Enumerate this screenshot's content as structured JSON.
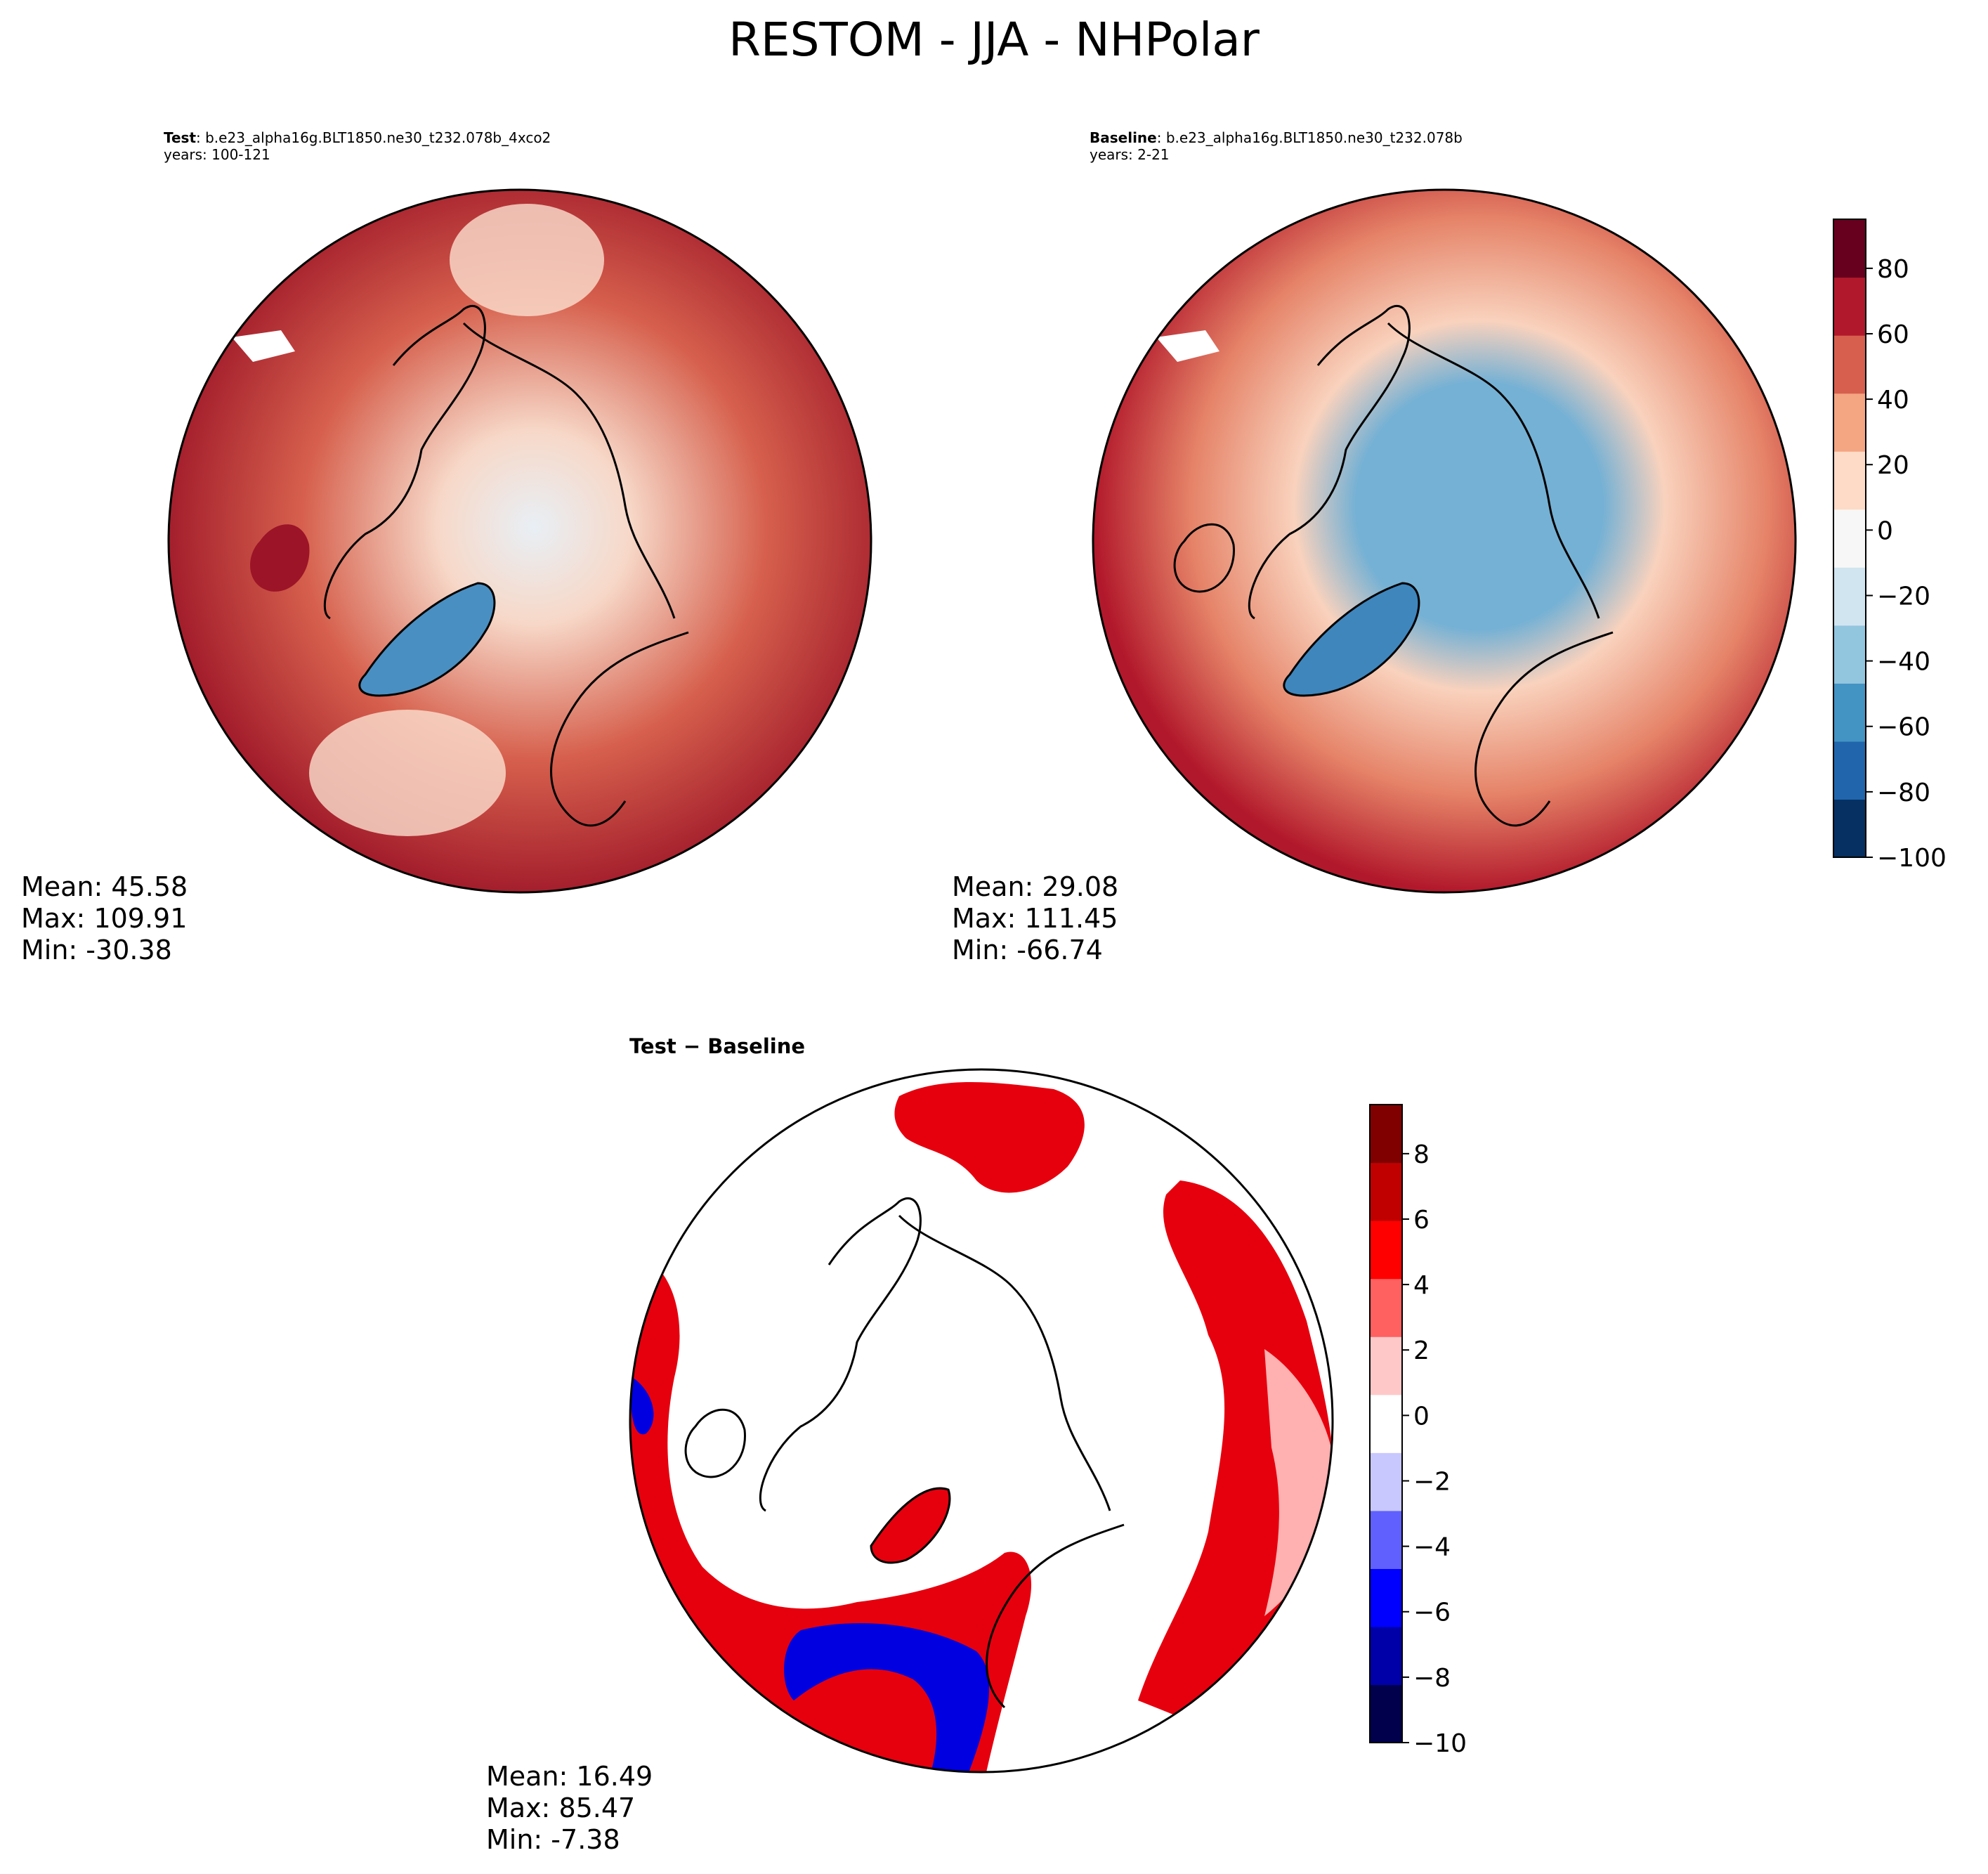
{
  "figure": {
    "title": "RESTOM - JJA - NHPolar"
  },
  "panels": {
    "test": {
      "label": "Test",
      "case": ": b.e23_alpha16g.BLT1850.ne30_t232.078b_4xco2",
      "years": "years: 100-121",
      "stats": {
        "mean": "Mean: 45.58",
        "max": "Max: 109.91",
        "min": "Min: -30.38"
      }
    },
    "baseline": {
      "label": "Baseline",
      "case": ": b.e23_alpha16g.BLT1850.ne30_t232.078b",
      "years": "years: 2-21",
      "stats": {
        "mean": "Mean: 29.08",
        "max": "Max: 111.45",
        "min": "Min: -66.74"
      }
    },
    "diff": {
      "title": "Test − Baseline",
      "stats": {
        "mean": "Mean: 16.49",
        "max": "Max: 85.47",
        "min": "Min: -7.38"
      }
    }
  },
  "chart_data": [
    {
      "type": "heatmap",
      "projection": "north polar stereographic",
      "title": "Test",
      "variable": "RESTOM",
      "season": "JJA",
      "region": "NHPolar",
      "mean": 45.58,
      "max": 109.91,
      "min": -30.38
    },
    {
      "type": "heatmap",
      "projection": "north polar stereographic",
      "title": "Baseline",
      "variable": "RESTOM",
      "season": "JJA",
      "region": "NHPolar",
      "mean": 29.08,
      "max": 111.45,
      "min": -66.74
    },
    {
      "type": "heatmap",
      "projection": "north polar stereographic",
      "title": "Test − Baseline",
      "variable": "RESTOM",
      "mean": 16.49,
      "max": 85.47,
      "min": -7.38
    }
  ],
  "colorbars": {
    "main": {
      "range": [
        -100,
        95
      ],
      "ticks": [
        -100,
        -80,
        -60,
        -40,
        -20,
        0,
        20,
        40,
        60,
        80
      ],
      "tick_labels": [
        "−100",
        "−80",
        "−60",
        "−40",
        "−20",
        "0",
        "20",
        "40",
        "60",
        "80"
      ],
      "colors": [
        "#053061",
        "#2166ac",
        "#4393c3",
        "#92c5de",
        "#d1e5f0",
        "#f7f7f7",
        "#fddbc7",
        "#f4a582",
        "#d6604d",
        "#b2182b",
        "#67001f"
      ]
    },
    "diff": {
      "range": [
        -10,
        9.5
      ],
      "ticks": [
        -10,
        -8,
        -6,
        -4,
        -2,
        0,
        2,
        4,
        6,
        8
      ],
      "tick_labels": [
        "−10",
        "−8",
        "−6",
        "−4",
        "−2",
        "0",
        "2",
        "4",
        "6",
        "8"
      ],
      "colors": [
        "#00004c",
        "#0000a8",
        "#0000ff",
        "#6060ff",
        "#c8c8ff",
        "#ffffff",
        "#ffc8c8",
        "#ff6060",
        "#ff0000",
        "#c00000",
        "#800000"
      ]
    }
  },
  "field_colors": {
    "test": {
      "outer": "#9c1427",
      "mid": "#d6604d",
      "inner": "#f7d8c8",
      "pole": "#e8eff5",
      "greenland": "#4a8fc2",
      "warm_patch": "#fbe0d0"
    },
    "baseline": {
      "outer": "#b2182b",
      "mid": "#e58267",
      "inner": "#f9d2bd",
      "pole": "#75b1d4",
      "greenland": "#3f86bd"
    },
    "diff": {
      "red": "#e6000e",
      "light": "#ffb0b0",
      "blue": "#0000e0"
    }
  }
}
